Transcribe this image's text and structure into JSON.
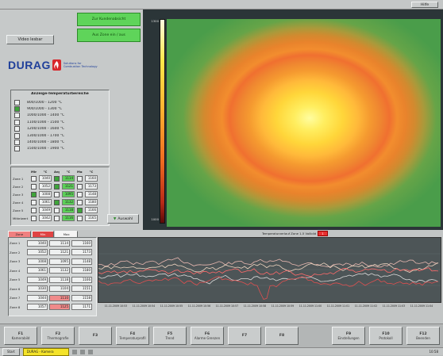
{
  "titlebar": {
    "label": "Hilfe"
  },
  "toolbar": {
    "video_button": "Video lesbar"
  },
  "green_buttons": [
    "Zur Kundenabsicht",
    "Aus Zone ein / aus"
  ],
  "logo": {
    "brand": "DURAG",
    "tagline_1": "Solutions for",
    "tagline_2": "Combustion Technology"
  },
  "ranges_panel": {
    "title": "Anzeige-Temperaturbereiche",
    "items": [
      {
        "label": "800/1000 - 1200 °C",
        "checked": false
      },
      {
        "label": "900/1000 - 1300 °C",
        "checked": true
      },
      {
        "label": "1000/1000 - 1400 °C",
        "checked": false
      },
      {
        "label": "1100/1000 - 1500 °C",
        "checked": false
      },
      {
        "label": "1200/1000 - 1600 °C",
        "checked": false
      },
      {
        "label": "1300/1000 - 1700 °C",
        "checked": false
      },
      {
        "label": "1400/1000 - 1800 °C",
        "checked": false
      },
      {
        "label": "1500/1000 - 1900 °C",
        "checked": false
      }
    ]
  },
  "zones_panel": {
    "headers": [
      "",
      "Min",
      "°C",
      "Avg",
      "°C",
      "Max",
      "°C"
    ],
    "rows": [
      {
        "label": "Zone 1",
        "min": "1040",
        "avg": "1114",
        "max": "1160",
        "c1": false,
        "c2": true,
        "c3": false
      },
      {
        "label": "Zone 2",
        "min": "1052",
        "avg": "1121",
        "max": "1173",
        "c1": false,
        "c2": true,
        "c3": false
      },
      {
        "label": "Zone 3",
        "min": "1008",
        "avg": "1095",
        "max": "1148",
        "c1": true,
        "c2": false,
        "c3": false
      },
      {
        "label": "Zone 4",
        "min": "1061",
        "avg": "1132",
        "max": "1180",
        "c1": false,
        "c2": true,
        "c3": false
      },
      {
        "label": "Zone 5",
        "min": "1049",
        "avg": "1118",
        "max": "1166",
        "c1": false,
        "c2": false,
        "c3": true
      },
      {
        "label": "Mittelwert",
        "min": "1042",
        "avg": "1116",
        "max": "1165",
        "c1": false,
        "c2": false,
        "c3": false
      }
    ],
    "button_label": "Auswahl"
  },
  "thermal": {
    "scale_top": "1300",
    "scale_bottom": "1000"
  },
  "trend": {
    "tabs": [
      "Zone",
      "Min",
      "Max"
    ],
    "header_text": "Temperaturverlauf  Zone 1-5  Vollbild",
    "header_badge": "1",
    "rows": [
      [
        "Zone 1",
        "1040",
        "1114",
        "1160"
      ],
      [
        "Zone 2",
        "1052",
        "1121",
        "1173"
      ],
      [
        "Zone 3",
        "1008",
        "1095",
        "1148"
      ],
      [
        "Zone 4",
        "1061",
        "1132",
        "1180"
      ],
      [
        "Zone 5",
        "1049",
        "1118",
        "1166"
      ],
      [
        "Zone 6",
        "1030",
        "1104",
        "1151"
      ],
      [
        "Zone 7",
        "1044",
        "1110",
        "1158"
      ],
      [
        "Zone 8",
        "1057",
        "1125",
        "1171"
      ]
    ],
    "time_labels": [
      "11.11.2009 10:53",
      "11.11.2009 10:54",
      "11.11.2009 10:55",
      "11.11.2009 10:56",
      "11.11.2009 10:57",
      "11.11.2009 10:58",
      "11.11.2009 10:59",
      "11.11.2009 11:00",
      "11.11.2009 11:01",
      "11.11.2009 11:02",
      "11.11.2009 11:03",
      "11.11.2009 11:04"
    ],
    "series_colors": [
      "#e8b8b0",
      "#f0d6c0",
      "#ff6a6a",
      "#d9d9d9",
      "#e05050"
    ]
  },
  "bottom_tabs": [
    {
      "num": "F1",
      "label": "Kamerabild"
    },
    {
      "num": "F2",
      "label": "Thermografie"
    },
    {
      "num": "F3",
      "label": ""
    },
    {
      "num": "F4",
      "label": "Temperaturprofil"
    },
    {
      "num": "F5",
      "label": "Trend"
    },
    {
      "num": "F6",
      "label": "Alarme Grenzen"
    },
    {
      "num": "F7",
      "label": ""
    },
    {
      "num": "F8",
      "label": ""
    },
    {
      "num": "F9",
      "label": "Einstellungen"
    },
    {
      "num": "F10",
      "label": "Protokoll"
    },
    {
      "num": "F12",
      "label": "Beenden"
    }
  ],
  "statusbar": {
    "left": "Start",
    "highlight": "DURAG - Kamera",
    "time": "10:58"
  }
}
